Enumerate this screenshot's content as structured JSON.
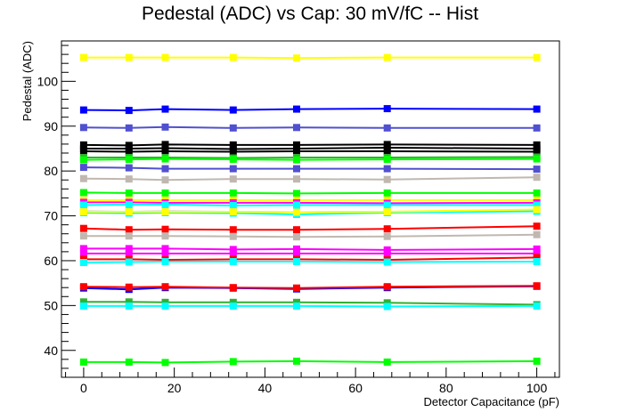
{
  "chart_data": {
    "type": "line",
    "title": "Pedestal (ADC) vs Cap: 30 mV/fC -- Hist",
    "xlabel": "Detector Capacitance (pF)",
    "ylabel": "Pedestal (ADC)",
    "xlim": [
      -4.9,
      105
    ],
    "ylim": [
      34,
      109
    ],
    "grid": false,
    "x": [
      0,
      10,
      18,
      33,
      47,
      67,
      100
    ],
    "x_ticks": [
      0,
      20,
      40,
      60,
      80,
      100
    ],
    "y_ticks": [
      40,
      50,
      60,
      70,
      80,
      90,
      100
    ],
    "series": [
      {
        "color": "#ffff00",
        "values": [
          105.3,
          105.3,
          105.3,
          105.3,
          105.2,
          105.3,
          105.3
        ]
      },
      {
        "color": "#0000ff",
        "values": [
          93.6,
          93.5,
          93.8,
          93.6,
          93.8,
          93.9,
          93.8
        ]
      },
      {
        "color": "#5050d0",
        "values": [
          89.7,
          89.6,
          89.8,
          89.6,
          89.7,
          89.6,
          89.6
        ]
      },
      {
        "color": "#000000",
        "values": [
          85.8,
          85.7,
          85.9,
          85.8,
          85.8,
          85.9,
          85.8
        ]
      },
      {
        "color": "#000000",
        "values": [
          85.0,
          85.0,
          85.1,
          84.9,
          85.0,
          85.2,
          85.0
        ]
      },
      {
        "color": "#000000",
        "values": [
          84.4,
          84.3,
          84.4,
          84.3,
          84.4,
          84.4,
          84.3
        ]
      },
      {
        "color": "#30b030",
        "values": [
          83.0,
          83.0,
          83.0,
          82.9,
          83.0,
          83.0,
          83.1
        ]
      },
      {
        "color": "#00ff00",
        "values": [
          82.5,
          82.6,
          82.7,
          82.6,
          82.5,
          82.6,
          82.7
        ]
      },
      {
        "color": "#5050d0",
        "values": [
          80.8,
          80.7,
          80.5,
          80.5,
          80.5,
          80.5,
          80.4
        ]
      },
      {
        "color": "#c0b8b0",
        "values": [
          78.3,
          78.2,
          78.0,
          78.2,
          78.2,
          78.1,
          78.6
        ]
      },
      {
        "color": "#00ff00",
        "values": [
          75.2,
          75.1,
          75.1,
          75.1,
          75.0,
          75.1,
          75.1
        ]
      },
      {
        "color": "#ffff00",
        "values": [
          73.5,
          73.5,
          73.5,
          73.5,
          73.5,
          73.5,
          73.5
        ]
      },
      {
        "color": "#ff00ff",
        "values": [
          73.0,
          73.0,
          72.9,
          72.9,
          72.9,
          72.8,
          72.9
        ]
      },
      {
        "color": "#00ffff",
        "values": [
          72.4,
          72.5,
          72.5,
          72.3,
          72.4,
          72.4,
          72.4
        ]
      },
      {
        "color": "#c0b8b0",
        "values": [
          71.0,
          70.9,
          71.0,
          70.9,
          70.8,
          70.9,
          71.1
        ]
      },
      {
        "color": "#00ffff",
        "values": [
          70.7,
          70.6,
          70.7,
          70.6,
          70.3,
          70.7,
          71.0
        ]
      },
      {
        "color": "#ffff00",
        "values": [
          70.9,
          70.9,
          70.9,
          70.9,
          70.8,
          70.9,
          71.4
        ]
      },
      {
        "color": "#ff0000",
        "values": [
          67.2,
          66.9,
          67.0,
          66.9,
          66.9,
          67.1,
          67.7
        ]
      },
      {
        "color": "#c0b8b0",
        "values": [
          65.5,
          65.5,
          65.5,
          65.4,
          65.3,
          65.4,
          65.8
        ]
      },
      {
        "color": "#ff00ff",
        "values": [
          62.7,
          62.7,
          62.7,
          62.5,
          62.6,
          62.4,
          62.6
        ]
      },
      {
        "color": "#ff00ff",
        "values": [
          61.6,
          61.6,
          61.6,
          61.6,
          61.6,
          61.6,
          61.6
        ]
      },
      {
        "color": "#ff0000",
        "values": [
          60.3,
          60.3,
          60.2,
          60.3,
          60.3,
          60.2,
          60.7
        ]
      },
      {
        "color": "#00ffff",
        "values": [
          59.6,
          59.7,
          59.8,
          59.8,
          59.8,
          59.7,
          59.8
        ]
      },
      {
        "color": "#0000ff",
        "values": [
          53.9,
          53.6,
          54.0,
          53.9,
          53.7,
          54.0,
          54.3
        ]
      },
      {
        "color": "#ff0000",
        "values": [
          54.2,
          54.1,
          54.2,
          54.0,
          53.9,
          54.2,
          54.4
        ]
      },
      {
        "color": "#30b030",
        "values": [
          50.8,
          50.8,
          50.7,
          50.7,
          50.7,
          50.6,
          50.2
        ]
      },
      {
        "color": "#00ffff",
        "values": [
          49.9,
          49.9,
          49.9,
          49.9,
          49.9,
          49.8,
          49.9
        ]
      },
      {
        "color": "#00ff00",
        "values": [
          37.4,
          37.4,
          37.3,
          37.5,
          37.6,
          37.4,
          37.6
        ]
      }
    ]
  }
}
